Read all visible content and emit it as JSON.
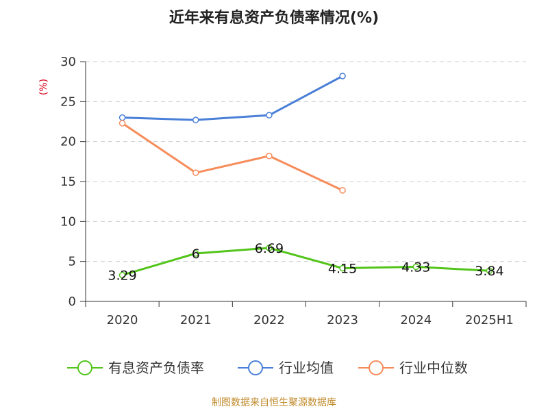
{
  "chart_data": {
    "type": "line",
    "title": "近年来有息资产负债率情况(%)",
    "ylabel": "(%)",
    "xlabel": "",
    "categories": [
      "2020",
      "2021",
      "2022",
      "2023",
      "2024",
      "2025H1"
    ],
    "ylim": [
      0,
      30
    ],
    "yticks": [
      0,
      5,
      10,
      15,
      20,
      25,
      30
    ],
    "grid": true,
    "legend_position": "bottom",
    "series": [
      {
        "name": "有息资产负债率",
        "color": "#52c41a",
        "values": [
          3.29,
          6,
          6.69,
          4.15,
          4.33,
          3.84
        ],
        "labels": [
          "3.29",
          "6",
          "6.69",
          "4.15",
          "4.33",
          "3.84"
        ]
      },
      {
        "name": "行业均值",
        "color": "#4a7fd8",
        "values": [
          23.0,
          22.7,
          23.3,
          28.2,
          null,
          null
        ]
      },
      {
        "name": "行业中位数",
        "color": "#f78c5a",
        "values": [
          22.3,
          16.1,
          18.2,
          13.9,
          null,
          null
        ]
      }
    ],
    "source": "制图数据来自恒生聚源数据库"
  }
}
